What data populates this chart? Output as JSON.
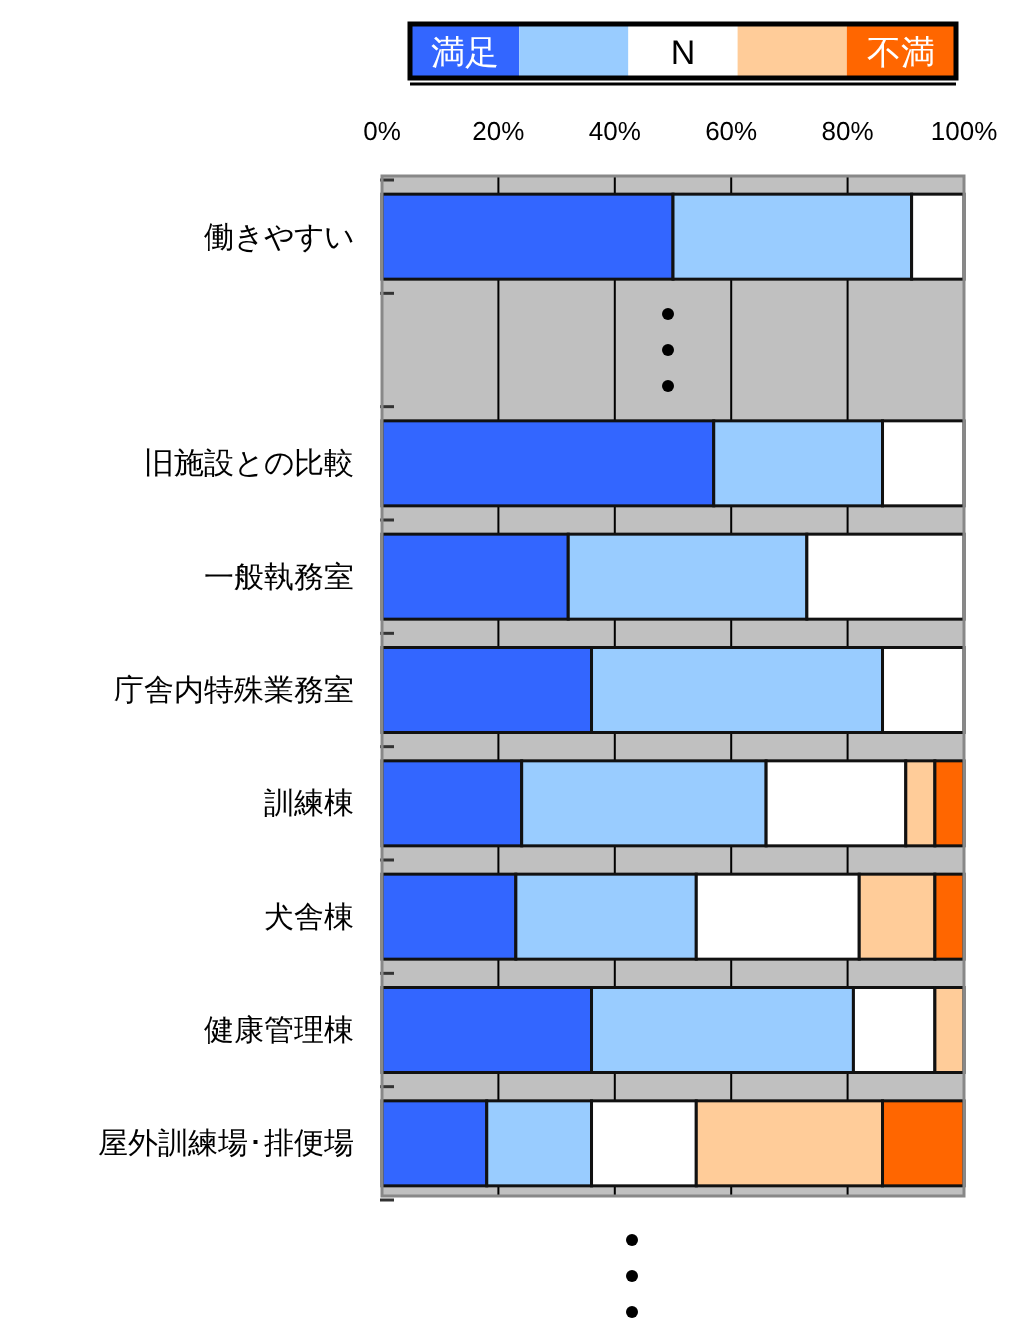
{
  "chart_data": {
    "type": "bar",
    "orientation": "horizontal",
    "stacked": true,
    "categories": [
      "働きやすい",
      null,
      "旧施設との比較",
      "一般執務室",
      "庁舎内特殊業務室",
      "訓練棟",
      "犬舎棟",
      "健康管理棟",
      "屋外訓練場･排便場"
    ],
    "series": [
      {
        "name": "満足",
        "color": "#3366ff",
        "values": [
          50,
          null,
          57,
          32,
          36,
          24,
          23,
          36,
          18
        ]
      },
      {
        "color": "#99ccff",
        "values": [
          41,
          null,
          29,
          41,
          50,
          42,
          31,
          45,
          18
        ]
      },
      {
        "name": "N",
        "color": "#ffffff",
        "values": [
          9,
          null,
          14,
          27,
          14,
          24,
          28,
          14,
          18
        ]
      },
      {
        "color": "#ffcc99",
        "values": [
          0,
          null,
          0,
          0,
          0,
          5,
          13,
          5,
          32
        ]
      },
      {
        "name": "不満",
        "color": "#ff6600",
        "values": [
          0,
          null,
          0,
          0,
          0,
          5,
          5,
          0,
          14
        ]
      }
    ],
    "xlim": [
      0,
      100
    ],
    "xticks": [
      {
        "value": 0,
        "label": "0%"
      },
      {
        "value": 20,
        "label": "20%"
      },
      {
        "value": 40,
        "label": "40%"
      },
      {
        "value": 60,
        "label": "60%"
      },
      {
        "value": 80,
        "label": "80%"
      },
      {
        "value": 100,
        "label": "100%"
      }
    ],
    "grid": "x",
    "legend": "top"
  }
}
